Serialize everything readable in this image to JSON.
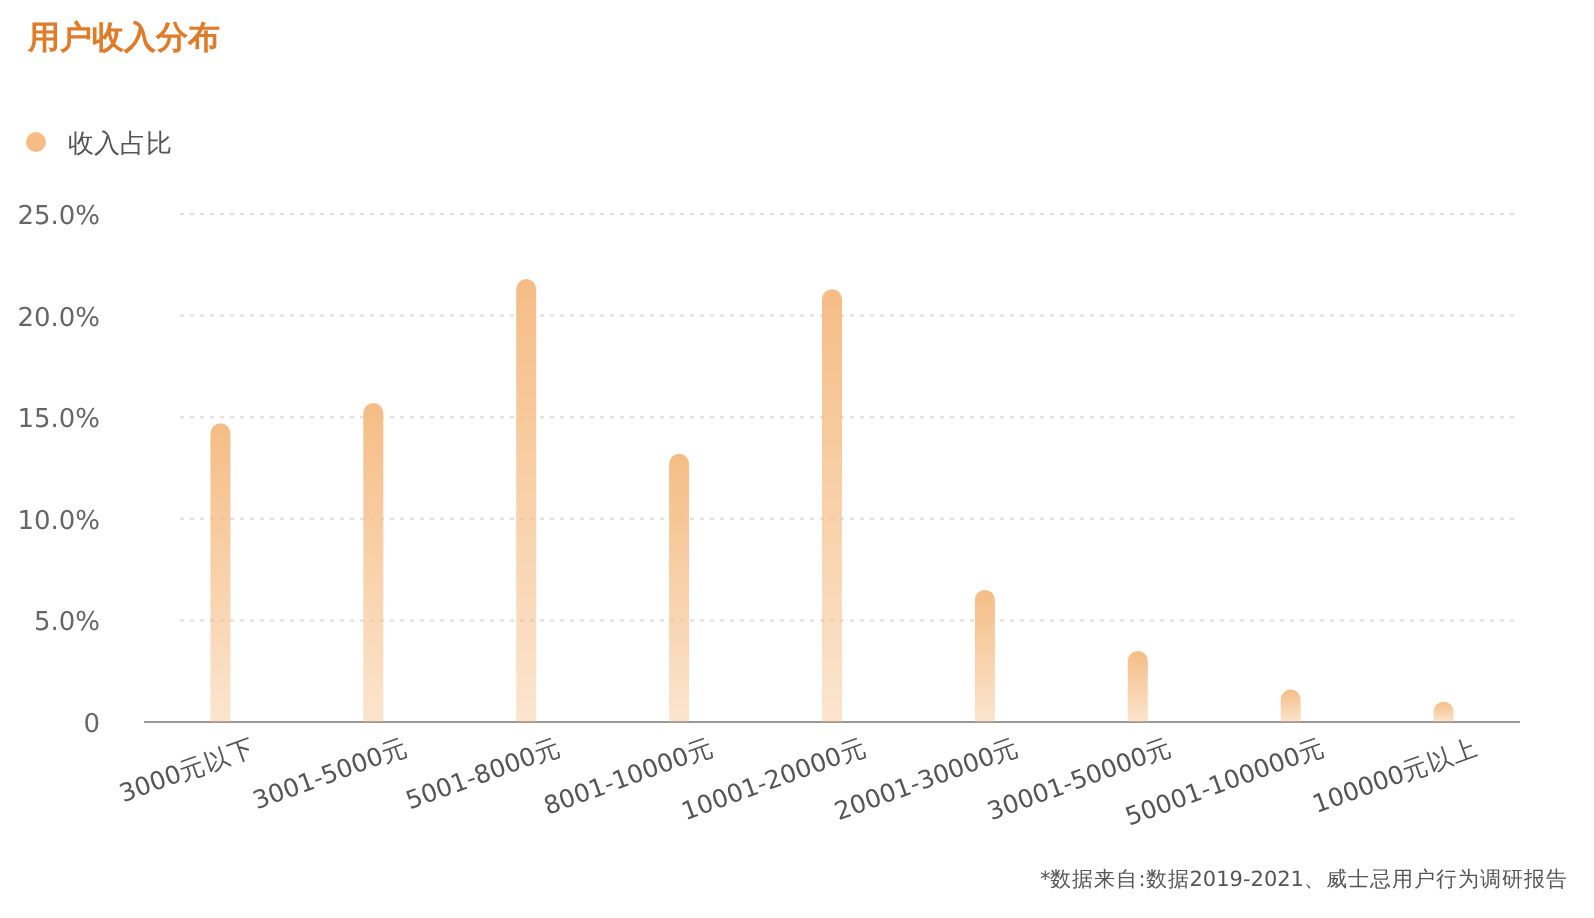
{
  "chart_data": {
    "type": "bar",
    "title": "用户收入分布",
    "categories": [
      "3000元以下",
      "3001-5000元",
      "5001-8000元",
      "8001-10000元",
      "10001-20000元",
      "20001-30000元",
      "30001-50000元",
      "50001-100000元",
      "100000元以上"
    ],
    "series": [
      {
        "name": "收入占比",
        "color": "#f5bd85",
        "values": [
          14.7,
          15.7,
          21.8,
          13.2,
          21.3,
          6.5,
          3.5,
          1.6,
          1.0
        ]
      }
    ],
    "ylim": [
      0,
      25
    ],
    "yticks": [
      {
        "value": 0,
        "label": "0"
      },
      {
        "value": 5,
        "label": "5.0%"
      },
      {
        "value": 10,
        "label": "10.0%"
      },
      {
        "value": 15,
        "label": "15.0%"
      },
      {
        "value": 20,
        "label": "20.0%"
      },
      {
        "value": 25,
        "label": "25.0%"
      }
    ],
    "grid": "y",
    "legend": "top left",
    "annotations": [
      "*数据来自:数据2019-2021、威士忌用户行为调研报告"
    ]
  }
}
